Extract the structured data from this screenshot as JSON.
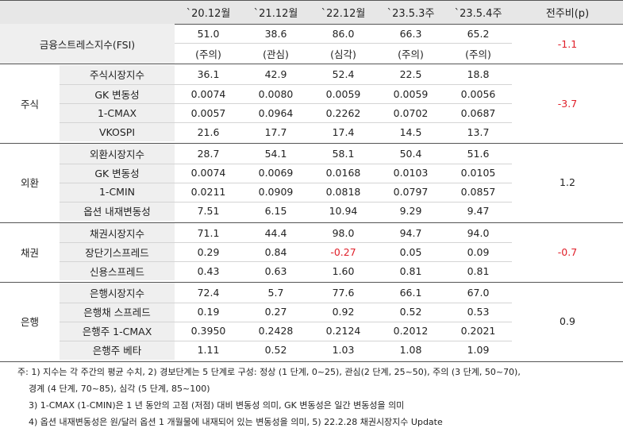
{
  "table": {
    "headers": [
      "`20.12월",
      "`21.12월",
      "`22.12월",
      "`23.5.3주",
      "`23.5.4주",
      "전주비(p)"
    ],
    "fsi": {
      "label": "금융스트레스지수(FSI)",
      "values": [
        "51.0",
        "38.6",
        "86.0",
        "66.3",
        "65.2"
      ],
      "levels": [
        "(주의)",
        "(관심)",
        "(심각)",
        "(주의)",
        "(주의)"
      ],
      "change": "-1.1"
    },
    "groups": [
      {
        "name": "주식",
        "change": "-3.7",
        "rows": [
          {
            "label": "주식시장지수",
            "values": [
              "36.1",
              "42.9",
              "52.4",
              "22.5",
              "18.8"
            ]
          },
          {
            "label": "GK 변동성",
            "values": [
              "0.0074",
              "0.0080",
              "0.0059",
              "0.0059",
              "0.0056"
            ]
          },
          {
            "label": "1-CMAX",
            "values": [
              "0.0057",
              "0.0964",
              "0.2262",
              "0.0702",
              "0.0687"
            ]
          },
          {
            "label": "VKOSPI",
            "values": [
              "21.6",
              "17.7",
              "17.4",
              "14.5",
              "13.7"
            ]
          }
        ]
      },
      {
        "name": "외환",
        "change": "1.2",
        "rows": [
          {
            "label": "외환시장지수",
            "values": [
              "28.7",
              "54.1",
              "58.1",
              "50.4",
              "51.6"
            ]
          },
          {
            "label": "GK 변동성",
            "values": [
              "0.0074",
              "0.0069",
              "0.0168",
              "0.0103",
              "0.0105"
            ]
          },
          {
            "label": "1-CMIN",
            "values": [
              "0.0211",
              "0.0909",
              "0.0818",
              "0.0797",
              "0.0857"
            ]
          },
          {
            "label": "옵션 내재변동성",
            "values": [
              "7.51",
              "6.15",
              "10.94",
              "9.29",
              "9.47"
            ]
          }
        ]
      },
      {
        "name": "채권",
        "change": "-0.7",
        "rows": [
          {
            "label": "채권시장지수",
            "values": [
              "71.1",
              "44.4",
              "98.0",
              "94.7",
              "94.0"
            ]
          },
          {
            "label": "장단기스프레드",
            "values": [
              "0.29",
              "0.84",
              "-0.27",
              "0.05",
              "0.09"
            ]
          },
          {
            "label": "신용스프레드",
            "values": [
              "0.43",
              "0.63",
              "1.60",
              "0.81",
              "0.81"
            ]
          }
        ]
      },
      {
        "name": "은행",
        "change": "0.9",
        "rows": [
          {
            "label": "은행시장지수",
            "values": [
              "72.4",
              "5.7",
              "77.6",
              "66.1",
              "67.0"
            ]
          },
          {
            "label": "은행채 스프레드",
            "values": [
              "0.19",
              "0.27",
              "0.92",
              "0.52",
              "0.53"
            ]
          },
          {
            "label": "은행주 1-CMAX",
            "values": [
              "0.3950",
              "0.2428",
              "0.2124",
              "0.2012",
              "0.2021"
            ]
          },
          {
            "label": "은행주 베타",
            "values": [
              "1.11",
              "0.52",
              "1.03",
              "1.08",
              "1.09"
            ]
          }
        ]
      }
    ]
  },
  "notes": [
    "주: 1) 지수는 각 주간의 평균 수치, 2) 경보단계는 5 단계로 구성: 정상 (1 단계, 0~25), 관심(2 단계, 25~50), 주의 (3 단계, 50~70),",
    "경계 (4 단계, 70~85), 심각 (5 단계, 85~100)",
    "3) 1-CMAX (1-CMIN)은 1 년 동안의 고점 (저점) 대비 변동성 의미, GK 변동성은 일간 변동성을 의미",
    "4) 옵션 내재변동성은 원/달러 옵션 1 개월물에 내재되어 있는 변동성을 의미, 5) 22.2.28 채권시장지수 Update"
  ],
  "colors": {
    "header_bg": "#e7e7e7",
    "label_bg": "#efefef",
    "group_border": "#555555",
    "row_border": "#d4d4d4",
    "negative": "#e0202a"
  }
}
